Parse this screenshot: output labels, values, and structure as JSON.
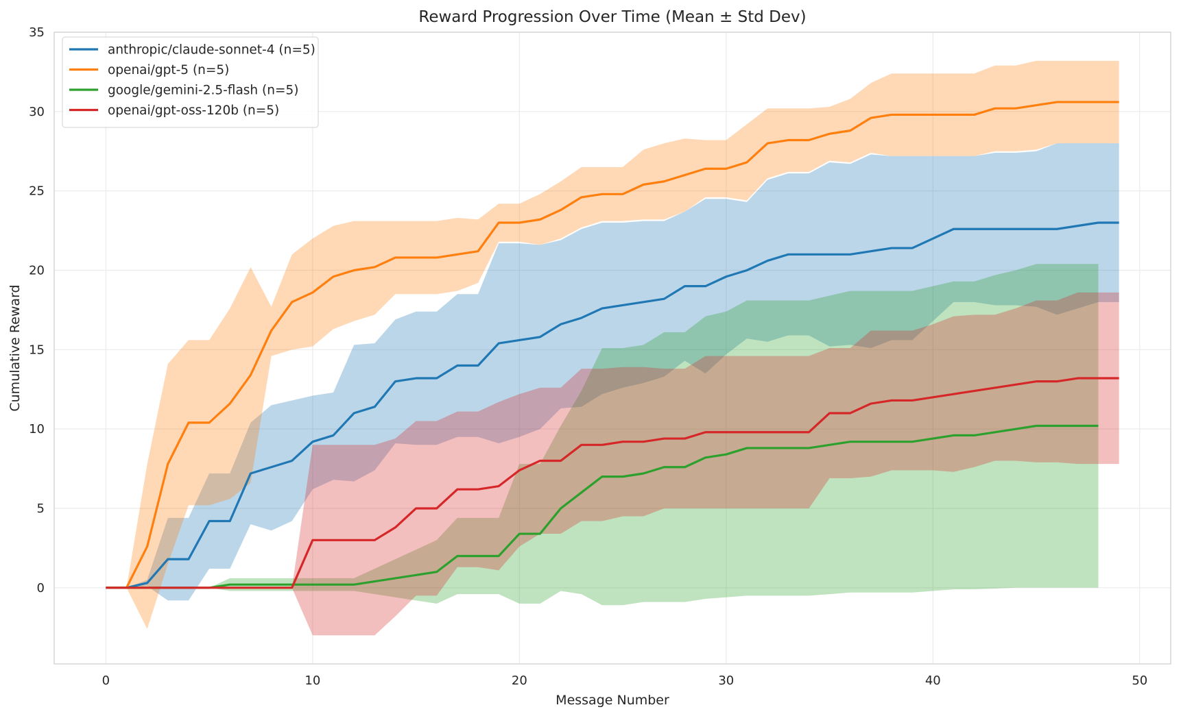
{
  "chart_data": {
    "type": "line",
    "title": "Reward Progression Over Time (Mean ± Std Dev)",
    "xlabel": "Message Number",
    "ylabel": "Cumulative Reward",
    "xlim": [
      -2.5,
      51.5
    ],
    "ylim": [
      -4.8,
      35
    ],
    "xticks": [
      0,
      10,
      20,
      30,
      40,
      50
    ],
    "yticks": [
      0,
      5,
      10,
      15,
      20,
      25,
      30,
      35
    ],
    "grid": true,
    "legend_position": "top-left",
    "band": "mean ± std dev",
    "series": [
      {
        "name": "anthropic/claude-sonnet-4 (n=5)",
        "color": "#1f77b4",
        "x": [
          0,
          1,
          2,
          3,
          4,
          5,
          6,
          7,
          8,
          9,
          10,
          11,
          12,
          13,
          14,
          15,
          16,
          17,
          18,
          19,
          20,
          21,
          22,
          23,
          24,
          25,
          26,
          27,
          28,
          29,
          30,
          31,
          32,
          33,
          34,
          35,
          36,
          37,
          38,
          39,
          40,
          41,
          42,
          43,
          44,
          45,
          46,
          47,
          48,
          49
        ],
        "mean": [
          0,
          0,
          0.3,
          1.8,
          1.8,
          4.2,
          4.2,
          7.2,
          7.6,
          8.0,
          9.2,
          9.6,
          11.0,
          11.4,
          13.0,
          13.2,
          13.2,
          14.0,
          14.0,
          15.4,
          15.6,
          15.8,
          16.6,
          17.0,
          17.6,
          17.8,
          18.0,
          18.2,
          19.0,
          19.0,
          19.6,
          20.0,
          20.6,
          21.0,
          21.0,
          21.0,
          21.0,
          21.2,
          21.4,
          21.4,
          22.0,
          22.6,
          22.6,
          22.6,
          22.6,
          22.6,
          22.6,
          22.8,
          23.0,
          23.0
        ],
        "upper": [
          0,
          0,
          0.5,
          4.4,
          4.4,
          7.2,
          7.2,
          10.4,
          11.5,
          11.8,
          12.1,
          12.3,
          15.3,
          15.4,
          16.9,
          17.4,
          17.4,
          18.5,
          18.5,
          21.7,
          21.7,
          21.6,
          21.9,
          22.6,
          23.0,
          23.0,
          23.1,
          23.1,
          23.7,
          24.5,
          24.5,
          24.3,
          25.7,
          26.1,
          26.1,
          26.8,
          26.7,
          27.3,
          27.2,
          27.2,
          27.2,
          27.2,
          27.2,
          27.4,
          27.4,
          27.5,
          28.0,
          28.0,
          28.0,
          28.0
        ],
        "lower": [
          0,
          0,
          0.1,
          -0.8,
          -0.8,
          1.2,
          1.2,
          4.0,
          3.6,
          4.2,
          6.2,
          6.8,
          6.7,
          7.4,
          9.1,
          9.0,
          9.0,
          9.5,
          9.5,
          9.1,
          9.5,
          10.0,
          11.3,
          11.4,
          12.2,
          12.6,
          12.9,
          13.3,
          14.3,
          13.5,
          14.7,
          15.7,
          15.5,
          15.9,
          15.9,
          15.2,
          15.3,
          15.1,
          15.6,
          15.6,
          16.8,
          18.0,
          18.0,
          17.8,
          17.8,
          17.7,
          17.2,
          17.6,
          18.0,
          18.0
        ]
      },
      {
        "name": "openai/gpt-5 (n=5)",
        "color": "#ff7f0e",
        "x": [
          0,
          1,
          2,
          3,
          4,
          5,
          6,
          7,
          8,
          9,
          10,
          11,
          12,
          13,
          14,
          15,
          16,
          17,
          18,
          19,
          20,
          21,
          22,
          23,
          24,
          25,
          26,
          27,
          28,
          29,
          30,
          31,
          32,
          33,
          34,
          35,
          36,
          37,
          38,
          39,
          40,
          41,
          42,
          43,
          44,
          45,
          46,
          47,
          48,
          49
        ],
        "mean": [
          0,
          0,
          2.6,
          7.8,
          10.4,
          10.4,
          11.6,
          13.4,
          16.2,
          18.0,
          18.6,
          19.6,
          20.0,
          20.2,
          20.8,
          20.8,
          20.8,
          21.0,
          21.2,
          23.0,
          23.0,
          23.2,
          23.8,
          24.6,
          24.8,
          24.8,
          25.4,
          25.6,
          26.0,
          26.4,
          26.4,
          26.8,
          28.0,
          28.2,
          28.2,
          28.6,
          28.8,
          29.6,
          29.8,
          29.8,
          29.8,
          29.8,
          29.8,
          30.2,
          30.2,
          30.4,
          30.6,
          30.6,
          30.6,
          30.6
        ],
        "upper": [
          0,
          0,
          7.8,
          14.1,
          15.6,
          15.6,
          17.6,
          20.2,
          17.7,
          21.0,
          22.0,
          22.8,
          23.1,
          23.1,
          23.1,
          23.1,
          23.1,
          23.3,
          23.2,
          24.2,
          24.2,
          24.8,
          25.6,
          26.5,
          26.5,
          26.5,
          27.6,
          28.0,
          28.3,
          28.2,
          28.2,
          29.2,
          30.2,
          30.2,
          30.2,
          30.3,
          30.8,
          31.8,
          32.4,
          32.4,
          32.4,
          32.4,
          32.4,
          32.9,
          32.9,
          33.2,
          33.2,
          33.2,
          33.2,
          33.2
        ],
        "lower": [
          0,
          0,
          -2.6,
          1.5,
          5.2,
          5.2,
          5.6,
          6.6,
          14.6,
          15.0,
          15.2,
          16.3,
          16.8,
          17.2,
          18.5,
          18.5,
          18.5,
          18.7,
          19.2,
          21.8,
          21.8,
          21.6,
          22.0,
          22.7,
          23.1,
          23.1,
          23.2,
          23.2,
          23.7,
          24.6,
          24.6,
          24.4,
          25.8,
          26.2,
          26.2,
          26.9,
          26.8,
          27.4,
          27.2,
          27.2,
          27.2,
          27.2,
          27.2,
          27.5,
          27.5,
          27.6,
          28.0,
          28.0,
          28.0,
          28.0
        ]
      },
      {
        "name": "google/gemini-2.5-flash (n=5)",
        "color": "#2ca02c",
        "x": [
          0,
          1,
          2,
          3,
          4,
          5,
          6,
          7,
          8,
          9,
          10,
          11,
          12,
          13,
          14,
          15,
          16,
          17,
          18,
          19,
          20,
          21,
          22,
          23,
          24,
          25,
          26,
          27,
          28,
          29,
          30,
          31,
          32,
          33,
          34,
          35,
          36,
          37,
          38,
          39,
          40,
          41,
          42,
          43,
          44,
          45,
          46,
          47,
          48
        ],
        "mean": [
          0,
          0,
          0,
          0,
          0,
          0,
          0.2,
          0.2,
          0.2,
          0.2,
          0.2,
          0.2,
          0.2,
          0.4,
          0.6,
          0.8,
          1.0,
          2.0,
          2.0,
          2.0,
          3.4,
          3.4,
          5.0,
          6.0,
          7.0,
          7.0,
          7.2,
          7.6,
          7.6,
          8.2,
          8.4,
          8.8,
          8.8,
          8.8,
          8.8,
          9.0,
          9.2,
          9.2,
          9.2,
          9.2,
          9.4,
          9.6,
          9.6,
          9.8,
          10.0,
          10.2,
          10.2,
          10.2,
          10.2
        ],
        "upper": [
          0,
          0,
          0,
          0,
          0,
          0,
          0.6,
          0.6,
          0.6,
          0.6,
          0.6,
          0.6,
          0.6,
          1.2,
          1.8,
          2.4,
          3.0,
          4.4,
          4.4,
          4.4,
          7.8,
          7.8,
          10.2,
          12.4,
          15.1,
          15.1,
          15.3,
          16.1,
          16.1,
          17.1,
          17.4,
          18.1,
          18.1,
          18.1,
          18.1,
          18.4,
          18.7,
          18.7,
          18.7,
          18.7,
          19.0,
          19.3,
          19.3,
          19.7,
          20.0,
          20.4,
          20.4,
          20.4,
          20.4
        ],
        "lower": [
          0,
          0,
          0,
          0,
          0,
          0,
          -0.2,
          -0.2,
          -0.2,
          -0.2,
          -0.2,
          -0.2,
          -0.2,
          -0.4,
          -0.6,
          -0.8,
          -1.0,
          -0.4,
          -0.4,
          -0.4,
          -1.0,
          -1.0,
          -0.2,
          -0.4,
          -1.1,
          -1.1,
          -0.9,
          -0.9,
          -0.9,
          -0.7,
          -0.6,
          -0.5,
          -0.5,
          -0.5,
          -0.5,
          -0.4,
          -0.3,
          -0.3,
          -0.3,
          -0.3,
          -0.2,
          -0.1,
          -0.1,
          -0.05,
          0.0,
          0.0,
          0.0,
          0.0,
          0.0
        ]
      },
      {
        "name": "openai/gpt-oss-120b (n=5)",
        "color": "#d62728",
        "x": [
          0,
          1,
          2,
          3,
          4,
          5,
          6,
          7,
          8,
          9,
          10,
          11,
          12,
          13,
          14,
          15,
          16,
          17,
          18,
          19,
          20,
          21,
          22,
          23,
          24,
          25,
          26,
          27,
          28,
          29,
          30,
          31,
          32,
          33,
          34,
          35,
          36,
          37,
          38,
          39,
          40,
          41,
          42,
          43,
          44,
          45,
          46,
          47,
          48,
          49
        ],
        "mean": [
          0,
          0,
          0,
          0,
          0,
          0,
          0,
          0,
          0,
          0,
          3.0,
          3.0,
          3.0,
          3.0,
          3.8,
          5.0,
          5.0,
          6.2,
          6.2,
          6.4,
          7.4,
          8.0,
          8.0,
          9.0,
          9.0,
          9.2,
          9.2,
          9.4,
          9.4,
          9.8,
          9.8,
          9.8,
          9.8,
          9.8,
          9.8,
          11.0,
          11.0,
          11.6,
          11.8,
          11.8,
          12.0,
          12.2,
          12.4,
          12.6,
          12.8,
          13.0,
          13.0,
          13.2,
          13.2,
          13.2
        ],
        "upper": [
          0,
          0,
          0,
          0,
          0,
          0,
          0,
          0,
          0,
          0,
          9.0,
          9.0,
          9.0,
          9.0,
          9.4,
          10.5,
          10.5,
          11.1,
          11.1,
          11.7,
          12.2,
          12.6,
          12.6,
          13.8,
          13.8,
          13.9,
          13.9,
          13.8,
          13.8,
          14.6,
          14.6,
          14.6,
          14.6,
          14.6,
          14.6,
          15.1,
          15.1,
          16.2,
          16.2,
          16.2,
          16.6,
          17.1,
          17.2,
          17.2,
          17.6,
          18.1,
          18.1,
          18.6,
          18.6,
          18.6
        ],
        "lower": [
          0,
          0,
          0,
          0,
          0,
          0,
          0,
          0,
          0,
          0,
          -3.0,
          -3.0,
          -3.0,
          -3.0,
          -1.8,
          -0.5,
          -0.5,
          1.3,
          1.3,
          1.1,
          2.6,
          3.4,
          3.4,
          4.2,
          4.2,
          4.5,
          4.5,
          5.0,
          5.0,
          5.0,
          5.0,
          5.0,
          5.0,
          5.0,
          5.0,
          6.9,
          6.9,
          7.0,
          7.4,
          7.4,
          7.4,
          7.3,
          7.6,
          8.0,
          8.0,
          7.9,
          7.9,
          7.8,
          7.8,
          7.8
        ]
      }
    ]
  }
}
